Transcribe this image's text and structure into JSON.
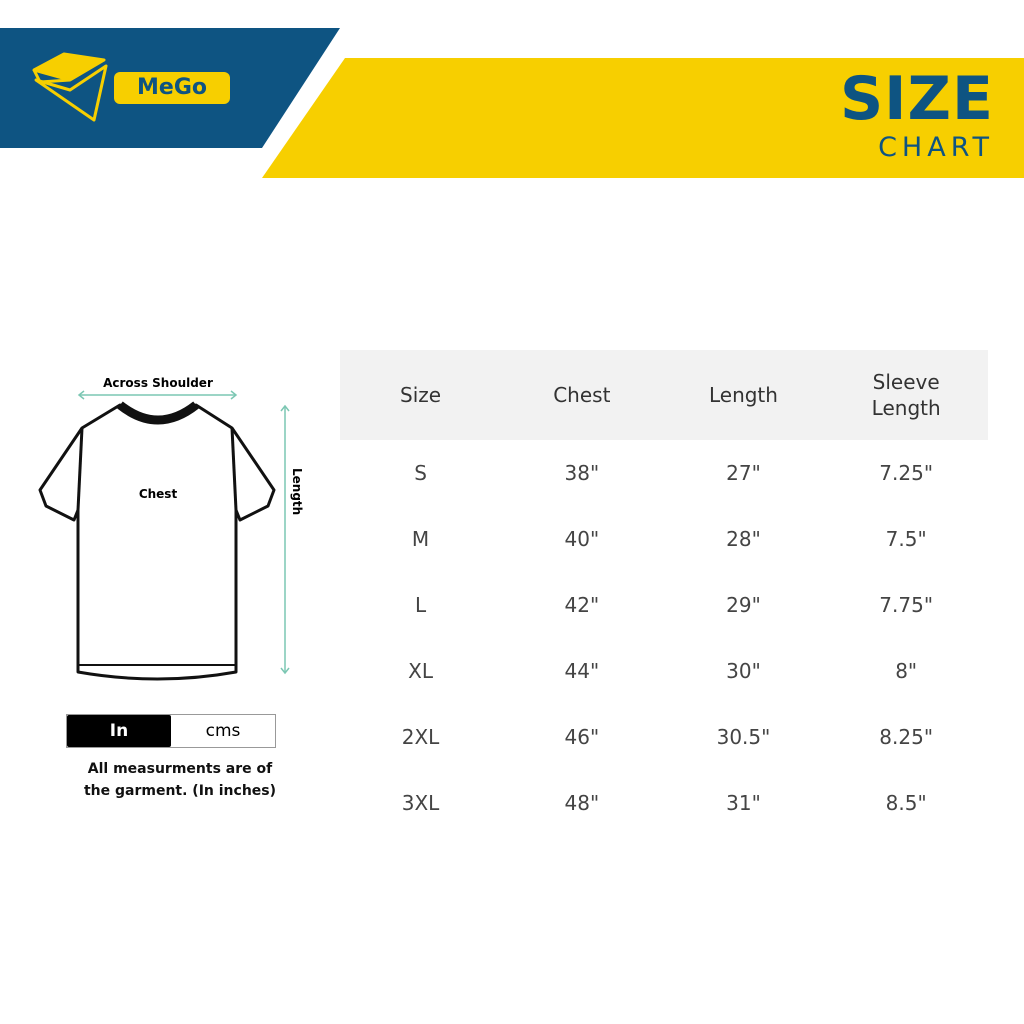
{
  "brand": {
    "name": "MeGo",
    "colors": {
      "primary": "#0e5482",
      "accent": "#f7cf00"
    }
  },
  "title": {
    "main": "SIZE",
    "sub": "CHART"
  },
  "diagram": {
    "across_shoulder": "Across Shoulder",
    "chest": "Chest",
    "length": "Length"
  },
  "unit_toggle": {
    "options": [
      "In",
      "cms"
    ],
    "selected": "In"
  },
  "note": {
    "line1": "All measurments are of",
    "line2": "the garment. (In inches)"
  },
  "table": {
    "headers": [
      "Size",
      "Chest",
      "Length",
      "Sleeve Length"
    ],
    "rows": [
      [
        "S",
        "38\"",
        "27\"",
        "7.25\""
      ],
      [
        "M",
        "40\"",
        "28\"",
        "7.5\""
      ],
      [
        "L",
        "42\"",
        "29\"",
        "7.75\""
      ],
      [
        "XL",
        "44\"",
        "30\"",
        "8\""
      ],
      [
        "2XL",
        "46\"",
        "30.5\"",
        "8.25\""
      ],
      [
        "3XL",
        "48\"",
        "31\"",
        "8.5\""
      ]
    ]
  }
}
